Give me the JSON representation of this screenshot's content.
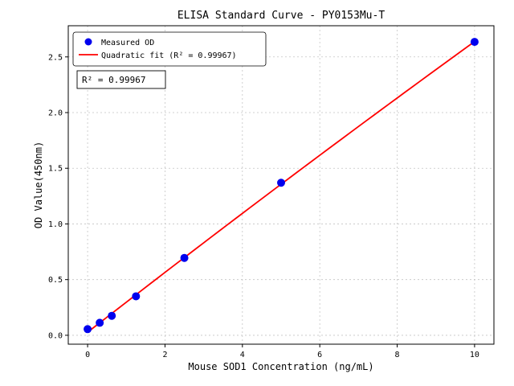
{
  "chart_data": {
    "type": "scatter",
    "title": "ELISA Standard Curve - PY0153Mu-T",
    "xlabel": "Mouse SOD1 Concentration (ng/mL)",
    "ylabel": "OD Value(450nm)",
    "series": [
      {
        "name": "Measured OD",
        "type": "scatter",
        "color": "#0000ee",
        "x": [
          0,
          0.3125,
          0.625,
          1.25,
          2.5,
          5,
          10
        ],
        "y": [
          0.055,
          0.112,
          0.175,
          0.35,
          0.695,
          1.37,
          2.635
        ]
      },
      {
        "name": "Quadratic fit (R² = 0.99967)",
        "type": "quadratic-fit",
        "color": "#ff0000",
        "r_squared": 0.99967
      }
    ],
    "annotation": "R² = 0.99967",
    "xlim": [
      -0.5,
      10.5
    ],
    "ylim": [
      -0.08,
      2.78
    ],
    "xticks": [
      0,
      2,
      4,
      6,
      8,
      10
    ],
    "xtick_labels": [
      "0",
      "2",
      "4",
      "6",
      "8",
      "10"
    ],
    "yticks": [
      0,
      0.5,
      1,
      1.5,
      2,
      2.5
    ],
    "ytick_labels": [
      "0.0",
      "0.5",
      "1.0",
      "1.5",
      "2.0",
      "2.5"
    ],
    "grid": true,
    "grid_color": "#c4c4c4",
    "legend_position": "upper-left"
  }
}
